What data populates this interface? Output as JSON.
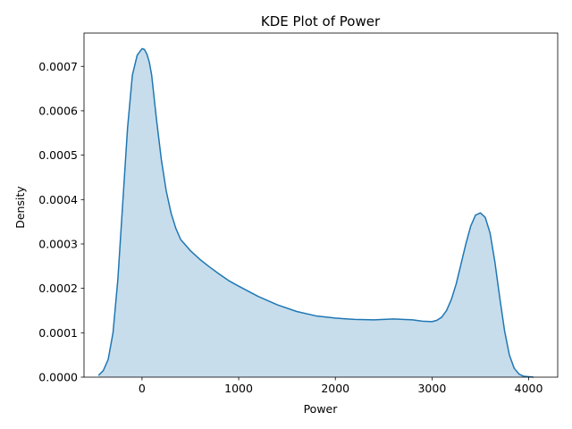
{
  "chart_data": {
    "type": "area",
    "title": "KDE Plot of Power",
    "xlabel": "Power",
    "ylabel": "Density",
    "xlim": [
      -600,
      4300
    ],
    "ylim": [
      0,
      0.000775
    ],
    "x_ticks": [
      0,
      1000,
      2000,
      3000,
      4000
    ],
    "x_tick_labels": [
      "0",
      "1000",
      "2000",
      "3000",
      "4000"
    ],
    "y_ticks": [
      0,
      0.0001,
      0.0002,
      0.0003,
      0.0004,
      0.0005,
      0.0006,
      0.0007
    ],
    "y_tick_labels": [
      "0.0000",
      "0.0001",
      "0.0002",
      "0.0003",
      "0.0004",
      "0.0005",
      "0.0006",
      "0.0007"
    ],
    "grid": false,
    "series": [
      {
        "color": "#1f77b4",
        "fill_color": "#1f77b4",
        "fill_opacity": 0.25,
        "x": [
          -450,
          -400,
          -350,
          -300,
          -250,
          -200,
          -150,
          -100,
          -50,
          0,
          25,
          50,
          75,
          100,
          150,
          200,
          250,
          300,
          350,
          400,
          500,
          600,
          700,
          800,
          900,
          1000,
          1200,
          1400,
          1600,
          1800,
          2000,
          2200,
          2400,
          2600,
          2800,
          2900,
          3000,
          3050,
          3100,
          3150,
          3200,
          3250,
          3300,
          3350,
          3400,
          3450,
          3500,
          3550,
          3600,
          3650,
          3700,
          3750,
          3800,
          3850,
          3900,
          3950,
          4000,
          4050
        ],
        "y": [
          4e-06,
          1.5e-05,
          4e-05,
          0.0001,
          0.00022,
          0.00039,
          0.00056,
          0.00068,
          0.000725,
          0.00074,
          0.000738,
          0.000728,
          0.00071,
          0.00068,
          0.00058,
          0.00049,
          0.00042,
          0.00037,
          0.000335,
          0.00031,
          0.000285,
          0.000265,
          0.000248,
          0.000232,
          0.000217,
          0.000205,
          0.000182,
          0.000163,
          0.000148,
          0.000138,
          0.000133,
          0.00013,
          0.000129,
          0.000131,
          0.000129,
          0.000126,
          0.000125,
          0.000128,
          0.000135,
          0.00015,
          0.000175,
          0.00021,
          0.000255,
          0.0003,
          0.00034,
          0.000365,
          0.00037,
          0.00036,
          0.000325,
          0.00026,
          0.00018,
          0.000105,
          5e-05,
          2e-05,
          7e-06,
          2e-06,
          1e-06,
          0.0
        ]
      }
    ]
  }
}
